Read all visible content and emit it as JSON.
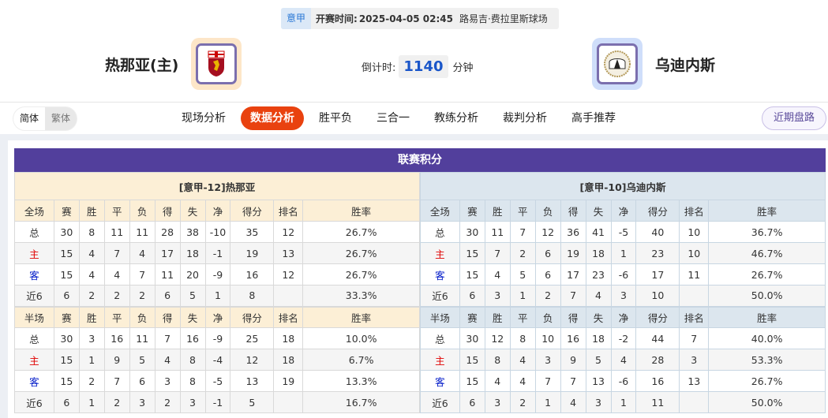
{
  "match": {
    "league": "意甲",
    "time_label": "开赛时间:",
    "time": "2025-04-05 02:45",
    "venue": "路易吉·费拉里斯球场"
  },
  "home": {
    "name": "热那亚(主)",
    "logo": "genoa-crest-icon"
  },
  "away": {
    "name": "乌迪内斯",
    "logo": "udinese-crest-icon"
  },
  "countdown": {
    "label": "倒计时:",
    "value": "1140",
    "unit": "分钟"
  },
  "lang": {
    "simplified": "简体",
    "traditional": "繁体"
  },
  "tabs": [
    "现场分析",
    "数据分析",
    "胜平负",
    "三合一",
    "教练分析",
    "裁判分析",
    "高手推荐"
  ],
  "recent_button": "近期盘路",
  "colors": {
    "accent": "#e9420f",
    "title_bar": "#523f9c",
    "home_row": "#e00000",
    "away_row": "#0019c8"
  },
  "standings": {
    "title": "联赛积分",
    "columns": [
      "赛",
      "胜",
      "平",
      "负",
      "得",
      "失",
      "净",
      "得分",
      "排名",
      "胜率"
    ],
    "full_label": "全场",
    "half_label": "半场",
    "teams": [
      {
        "header": "[意甲-12]热那亚",
        "full": [
          [
            "总",
            "30",
            "8",
            "11",
            "11",
            "28",
            "38",
            "-10",
            "35",
            "12",
            "26.7%"
          ],
          [
            "主",
            "15",
            "4",
            "7",
            "4",
            "17",
            "18",
            "-1",
            "19",
            "13",
            "26.7%"
          ],
          [
            "客",
            "15",
            "4",
            "4",
            "7",
            "11",
            "20",
            "-9",
            "16",
            "12",
            "26.7%"
          ],
          [
            "近6",
            "6",
            "2",
            "2",
            "2",
            "6",
            "5",
            "1",
            "8",
            "",
            "33.3%"
          ]
        ],
        "half": [
          [
            "总",
            "30",
            "3",
            "16",
            "11",
            "7",
            "16",
            "-9",
            "25",
            "18",
            "10.0%"
          ],
          [
            "主",
            "15",
            "1",
            "9",
            "5",
            "4",
            "8",
            "-4",
            "12",
            "18",
            "6.7%"
          ],
          [
            "客",
            "15",
            "2",
            "7",
            "6",
            "3",
            "8",
            "-5",
            "13",
            "19",
            "13.3%"
          ],
          [
            "近6",
            "6",
            "1",
            "2",
            "3",
            "2",
            "3",
            "-1",
            "5",
            "",
            "16.7%"
          ]
        ]
      },
      {
        "header": "[意甲-10]乌迪内斯",
        "full": [
          [
            "总",
            "30",
            "11",
            "7",
            "12",
            "36",
            "41",
            "-5",
            "40",
            "10",
            "36.7%"
          ],
          [
            "主",
            "15",
            "7",
            "2",
            "6",
            "19",
            "18",
            "1",
            "23",
            "10",
            "46.7%"
          ],
          [
            "客",
            "15",
            "4",
            "5",
            "6",
            "17",
            "23",
            "-6",
            "17",
            "11",
            "26.7%"
          ],
          [
            "近6",
            "6",
            "3",
            "1",
            "2",
            "7",
            "4",
            "3",
            "10",
            "",
            "50.0%"
          ]
        ],
        "half": [
          [
            "总",
            "30",
            "12",
            "8",
            "10",
            "16",
            "18",
            "-2",
            "44",
            "7",
            "40.0%"
          ],
          [
            "主",
            "15",
            "8",
            "4",
            "3",
            "9",
            "5",
            "4",
            "28",
            "3",
            "53.3%"
          ],
          [
            "客",
            "15",
            "4",
            "4",
            "7",
            "7",
            "13",
            "-6",
            "16",
            "13",
            "26.7%"
          ],
          [
            "近6",
            "6",
            "3",
            "2",
            "1",
            "4",
            "3",
            "1",
            "11",
            "",
            "50.0%"
          ]
        ]
      }
    ]
  }
}
